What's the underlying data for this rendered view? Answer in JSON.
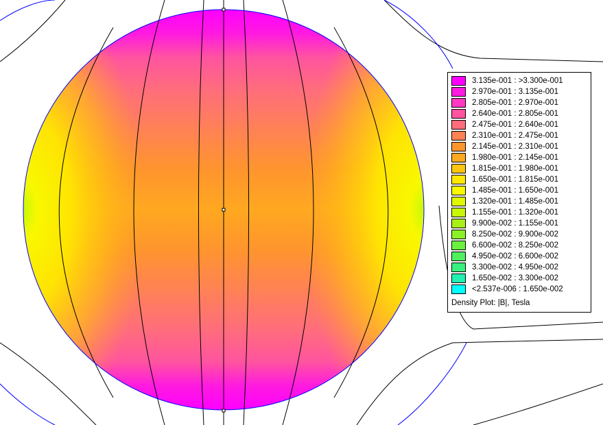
{
  "legend": {
    "caption": "Density Plot: |B|, Tesla",
    "entries": [
      {
        "label": "3.135e-001 : >3.300e-001",
        "color": "#ff00ff"
      },
      {
        "label": "2.970e-001 : 3.135e-001",
        "color": "#ff1ae0"
      },
      {
        "label": "2.805e-001 : 2.970e-001",
        "color": "#ff38c2"
      },
      {
        "label": "2.640e-001 : 2.805e-001",
        "color": "#ff549f"
      },
      {
        "label": "2.475e-001 : 2.640e-001",
        "color": "#ff6d7c"
      },
      {
        "label": "2.310e-001 : 2.475e-001",
        "color": "#ff8255"
      },
      {
        "label": "2.145e-001 : 2.310e-001",
        "color": "#ff952e"
      },
      {
        "label": "1.980e-001 : 2.145e-001",
        "color": "#ffa820"
      },
      {
        "label": "1.815e-001 : 1.980e-001",
        "color": "#ffc40e"
      },
      {
        "label": "1.650e-001 : 1.815e-001",
        "color": "#ffe800"
      },
      {
        "label": "1.485e-001 : 1.650e-001",
        "color": "#f8f800"
      },
      {
        "label": "1.320e-001 : 1.485e-001",
        "color": "#e0f800"
      },
      {
        "label": "1.155e-001 : 1.320e-001",
        "color": "#c8f808"
      },
      {
        "label": "9.900e-002 : 1.155e-001",
        "color": "#a8f018"
      },
      {
        "label": "8.250e-002 : 9.900e-002",
        "color": "#8cf028"
      },
      {
        "label": "6.600e-002 : 8.250e-002",
        "color": "#6cf040"
      },
      {
        "label": "4.950e-002 : 6.600e-002",
        "color": "#50f060"
      },
      {
        "label": "3.300e-002 : 4.950e-002",
        "color": "#38f080"
      },
      {
        "label": "1.650e-002 : 3.300e-002",
        "color": "#20f0b0"
      },
      {
        "label": "<2.537e-006 : 1.650e-002",
        "color": "#00ffff"
      }
    ]
  },
  "plot": {
    "colors": {
      "field_line": "#000000",
      "boundary": "#0000ff",
      "background": "#ffffff"
    }
  }
}
